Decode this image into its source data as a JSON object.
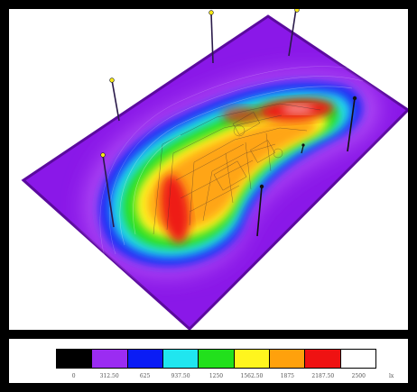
{
  "chart_data": {
    "type": "heatmap",
    "title": "",
    "unit": "lx",
    "color_scale": [
      {
        "value": 0,
        "label": "0",
        "color": "#000000"
      },
      {
        "value": 312.5,
        "label": "312.50",
        "color": "#9b2cf2"
      },
      {
        "value": 625,
        "label": "625",
        "color": "#0a1cf5"
      },
      {
        "value": 937.5,
        "label": "937.50",
        "color": "#20e6ef"
      },
      {
        "value": 1250,
        "label": "1250",
        "color": "#22e01c"
      },
      {
        "value": 1562.5,
        "label": "1562.50",
        "color": "#fff51e"
      },
      {
        "value": 1875,
        "label": "1875",
        "color": "#ffa10c"
      },
      {
        "value": 2187.5,
        "label": "2187.50",
        "color": "#ef1212"
      },
      {
        "value": 2500,
        "label": "2500",
        "color": "#ffffff"
      }
    ],
    "max_level": 2187.5,
    "min_level": 312.5,
    "poles": 7
  }
}
